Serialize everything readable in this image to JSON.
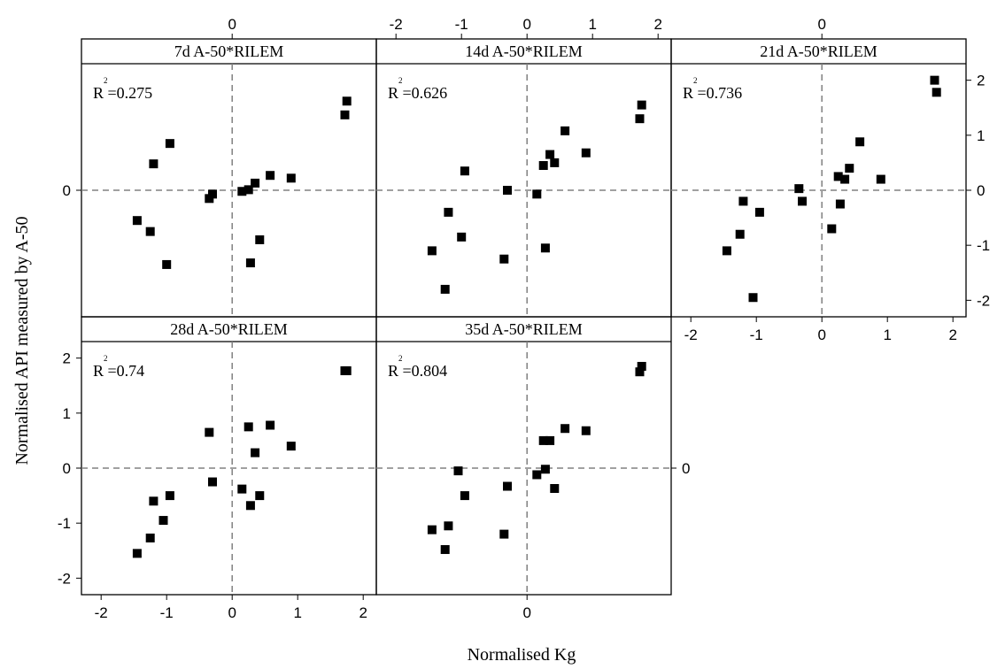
{
  "chart_data": {
    "type": "scatter",
    "layout": "trellis 2x3",
    "xlabel": "Normalised Kg",
    "ylabel": "Normalised API measured by A-50",
    "xlim": [
      -2.3,
      2.2
    ],
    "ylim": [
      -2.3,
      2.3
    ],
    "xticks": [
      -2,
      -1,
      0,
      1,
      2
    ],
    "yticks": [
      -2,
      -1,
      0,
      1,
      2
    ],
    "reference_lines": {
      "x": 0,
      "y": 0,
      "style": "dashed",
      "color": "#808080"
    },
    "marker": {
      "shape": "square",
      "color": "#000000"
    },
    "panels": [
      {
        "title": "7d A-50*RILEM",
        "r2": "0.275",
        "points": [
          [
            -1.45,
            -0.55
          ],
          [
            -1.25,
            -0.75
          ],
          [
            -1.2,
            0.48
          ],
          [
            -1.0,
            -1.35
          ],
          [
            -0.95,
            0.85
          ],
          [
            -0.35,
            -0.15
          ],
          [
            -0.3,
            -0.07
          ],
          [
            0.15,
            -0.02
          ],
          [
            0.25,
            0.01
          ],
          [
            0.35,
            0.13
          ],
          [
            0.42,
            -0.9
          ],
          [
            0.58,
            0.27
          ],
          [
            0.9,
            0.22
          ],
          [
            1.72,
            1.37
          ],
          [
            1.75,
            1.62
          ],
          [
            0.28,
            -1.32
          ]
        ]
      },
      {
        "title": "14d A-50*RILEM",
        "r2": "0.626",
        "points": [
          [
            -1.45,
            -1.1
          ],
          [
            -1.25,
            -1.8
          ],
          [
            -1.2,
            -0.4
          ],
          [
            -1.0,
            -0.85
          ],
          [
            -0.95,
            0.35
          ],
          [
            -0.35,
            -1.25
          ],
          [
            -0.3,
            0.0
          ],
          [
            0.15,
            -0.07
          ],
          [
            0.25,
            0.45
          ],
          [
            0.28,
            -1.05
          ],
          [
            0.35,
            0.65
          ],
          [
            0.42,
            0.5
          ],
          [
            0.58,
            1.08
          ],
          [
            0.9,
            0.68
          ],
          [
            1.72,
            1.3
          ],
          [
            1.75,
            1.55
          ]
        ]
      },
      {
        "title": "21d A-50*RILEM",
        "r2": "0.736",
        "points": [
          [
            -1.45,
            -1.1
          ],
          [
            -1.25,
            -0.8
          ],
          [
            -1.2,
            -0.2
          ],
          [
            -1.05,
            -1.95
          ],
          [
            -0.95,
            -0.4
          ],
          [
            -0.35,
            0.03
          ],
          [
            -0.3,
            -0.2
          ],
          [
            0.15,
            -0.7
          ],
          [
            0.25,
            0.25
          ],
          [
            0.28,
            -0.25
          ],
          [
            0.35,
            0.2
          ],
          [
            0.42,
            0.4
          ],
          [
            0.58,
            0.88
          ],
          [
            0.9,
            0.2
          ],
          [
            1.72,
            2.0
          ],
          [
            1.75,
            1.78
          ]
        ]
      },
      {
        "title": "28d A-50*RILEM",
        "r2": "0.74",
        "points": [
          [
            -1.45,
            -1.55
          ],
          [
            -1.25,
            -1.27
          ],
          [
            -1.2,
            -0.6
          ],
          [
            -1.05,
            -0.95
          ],
          [
            -0.95,
            -0.5
          ],
          [
            -0.35,
            0.65
          ],
          [
            -0.3,
            -0.25
          ],
          [
            0.15,
            -0.38
          ],
          [
            0.25,
            0.75
          ],
          [
            0.28,
            -0.68
          ],
          [
            0.35,
            0.28
          ],
          [
            0.42,
            -0.5
          ],
          [
            0.58,
            0.78
          ],
          [
            0.9,
            0.4
          ],
          [
            1.72,
            1.77
          ],
          [
            1.75,
            1.77
          ]
        ]
      },
      {
        "title": "35d A-50*RILEM",
        "r2": "0.804",
        "points": [
          [
            -1.45,
            -1.12
          ],
          [
            -1.25,
            -1.48
          ],
          [
            -1.2,
            -1.05
          ],
          [
            -1.05,
            -0.05
          ],
          [
            -0.95,
            -0.5
          ],
          [
            -0.35,
            -1.2
          ],
          [
            -0.3,
            -0.33
          ],
          [
            0.15,
            -0.12
          ],
          [
            0.25,
            0.5
          ],
          [
            0.28,
            -0.02
          ],
          [
            0.35,
            0.5
          ],
          [
            0.42,
            -0.37
          ],
          [
            0.58,
            0.72
          ],
          [
            0.9,
            0.68
          ],
          [
            1.72,
            1.75
          ],
          [
            1.75,
            1.85
          ]
        ]
      }
    ]
  }
}
